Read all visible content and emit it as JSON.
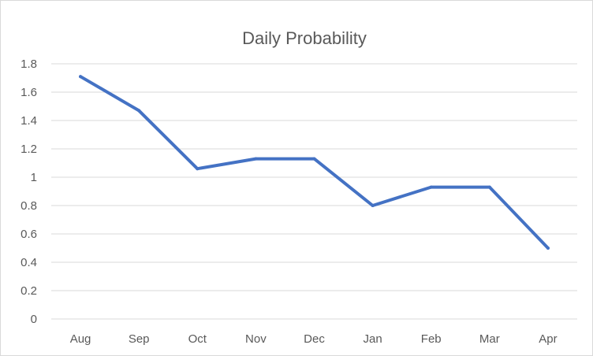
{
  "chart_data": {
    "type": "line",
    "title": "Daily Probability",
    "xlabel": "",
    "ylabel": "",
    "categories": [
      "Aug",
      "Sep",
      "Oct",
      "Nov",
      "Dec",
      "Jan",
      "Feb",
      "Mar",
      "Apr"
    ],
    "series": [
      {
        "values": [
          1.71,
          1.47,
          1.06,
          1.13,
          1.13,
          0.8,
          0.93,
          0.93,
          0.5
        ],
        "color": "#4472c4"
      }
    ],
    "ylim": [
      0,
      1.8
    ],
    "yticks": [
      "0",
      "0.2",
      "0.4",
      "0.6",
      "0.8",
      "1",
      "1.2",
      "1.4",
      "1.6",
      "1.8"
    ],
    "grid": true,
    "legend": "none",
    "colors": {
      "line": "#4472c4",
      "grid": "#d9d9d9",
      "text": "#595959",
      "border": "#d9d9d9"
    }
  }
}
